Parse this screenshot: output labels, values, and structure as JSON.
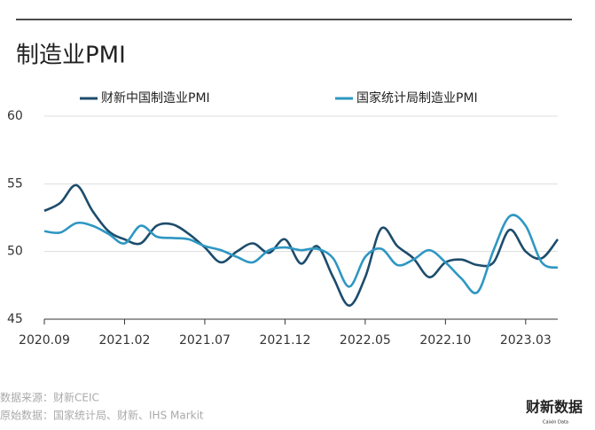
{
  "chart_data": {
    "type": "line",
    "title": "制造业PMI",
    "categories": [
      "2020.09",
      null,
      null,
      null,
      null,
      "2021.02",
      null,
      null,
      null,
      null,
      "2021.07",
      null,
      null,
      null,
      null,
      "2021.12",
      null,
      null,
      null,
      null,
      "2022.05",
      null,
      null,
      null,
      null,
      "2022.10",
      null,
      null,
      null,
      null,
      "2023.03",
      null,
      null
    ],
    "series": [
      {
        "name": "财新中国制造业PMI",
        "color": "#1d4c6c",
        "values": [
          53.0,
          53.6,
          54.9,
          53.0,
          51.5,
          50.9,
          50.6,
          51.9,
          52.0,
          51.3,
          50.3,
          49.2,
          50.0,
          50.6,
          49.9,
          50.9,
          49.1,
          50.4,
          48.1,
          46.0,
          48.1,
          51.7,
          50.4,
          49.5,
          48.1,
          49.2,
          49.4,
          49.0,
          49.2,
          51.6,
          50.0,
          49.5,
          50.9
        ]
      },
      {
        "name": "国家统计局制造业PMI",
        "color": "#2e97c2",
        "values": [
          51.5,
          51.4,
          52.1,
          51.9,
          51.3,
          50.6,
          51.9,
          51.1,
          51.0,
          50.9,
          50.4,
          50.1,
          49.6,
          49.2,
          50.1,
          50.3,
          50.1,
          50.2,
          49.5,
          47.4,
          49.6,
          50.2,
          49.0,
          49.4,
          50.1,
          49.2,
          48.0,
          47.0,
          50.1,
          52.6,
          51.9,
          49.2,
          48.8
        ]
      }
    ],
    "ylim": [
      45,
      60
    ],
    "yticks": [
      45,
      50,
      55,
      60
    ],
    "grid": true,
    "source": "数据来源：财新CEIC",
    "raw_source": "原始数据：国家统计局、财新、IHS Markit",
    "logo": "财新数据",
    "logo_sub": "Caixin Data"
  }
}
